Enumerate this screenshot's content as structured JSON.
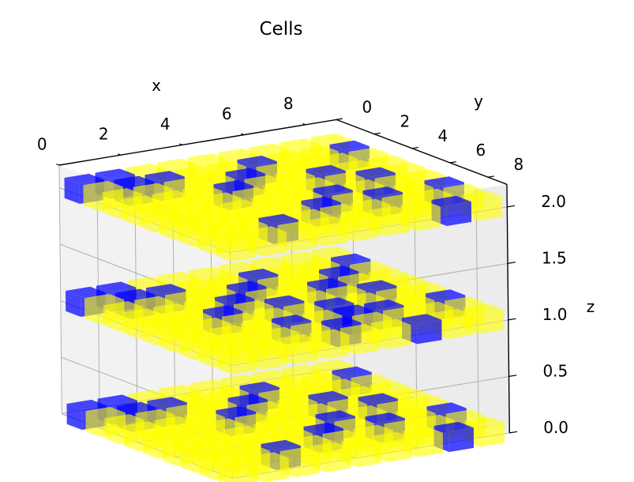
{
  "chart_data": {
    "type": "scatter",
    "subtype": "3d-voxels",
    "title": "Cells",
    "xlabel": "x",
    "ylabel": "y",
    "zlabel": "z",
    "xlim": [
      0,
      9
    ],
    "ylim": [
      0,
      9
    ],
    "zlim": [
      0,
      2.2
    ],
    "x_ticks": [
      "0",
      "2",
      "4",
      "6",
      "8"
    ],
    "y_ticks": [
      "0",
      "2",
      "4",
      "6",
      "8"
    ],
    "z_ticks": [
      "0.0",
      "0.5",
      "1.0",
      "1.5",
      "2.0"
    ],
    "grid": true,
    "colors": {
      "alive": "#0000ff",
      "empty": "#ffff00",
      "pane": "#f2f2f2",
      "grid": "#b0b0b0"
    },
    "layers": [
      0,
      1,
      2
    ],
    "series": [
      {
        "name": "",
        "color": "#0000ff",
        "cells_by_layer": [
          [
            [
              0,
              0
            ],
            [
              1,
              0
            ],
            [
              1,
              1
            ],
            [
              2,
              1
            ],
            [
              3,
              3
            ],
            [
              4,
              2
            ],
            [
              5,
              1
            ],
            [
              5,
              5
            ],
            [
              6,
              3
            ],
            [
              7,
              4
            ],
            [
              6,
              6
            ],
            [
              8,
              1
            ],
            [
              8,
              6
            ],
            [
              2,
              7
            ],
            [
              7,
              8
            ],
            [
              4,
              6
            ]
          ],
          [
            [
              0,
              0
            ],
            [
              1,
              0
            ],
            [
              1,
              1
            ],
            [
              2,
              1
            ],
            [
              3,
              3
            ],
            [
              4,
              2
            ],
            [
              5,
              1
            ],
            [
              5,
              5
            ],
            [
              6,
              3
            ],
            [
              7,
              4
            ],
            [
              6,
              6
            ],
            [
              8,
              1
            ],
            [
              8,
              6
            ],
            [
              4,
              4
            ],
            [
              3,
              6
            ],
            [
              6,
              8
            ],
            [
              5,
              6
            ],
            [
              7,
              2
            ],
            [
              2,
              4
            ],
            [
              4,
              7
            ]
          ],
          [
            [
              0,
              0
            ],
            [
              1,
              0
            ],
            [
              1,
              1
            ],
            [
              2,
              1
            ],
            [
              3,
              3
            ],
            [
              4,
              2
            ],
            [
              5,
              1
            ],
            [
              5,
              5
            ],
            [
              6,
              3
            ],
            [
              7,
              4
            ],
            [
              6,
              6
            ],
            [
              8,
              1
            ],
            [
              8,
              6
            ],
            [
              2,
              7
            ],
            [
              7,
              8
            ],
            [
              4,
              6
            ]
          ]
        ]
      },
      {
        "name": "",
        "color": "#ffff00",
        "fill": "all-other-cells"
      }
    ]
  }
}
